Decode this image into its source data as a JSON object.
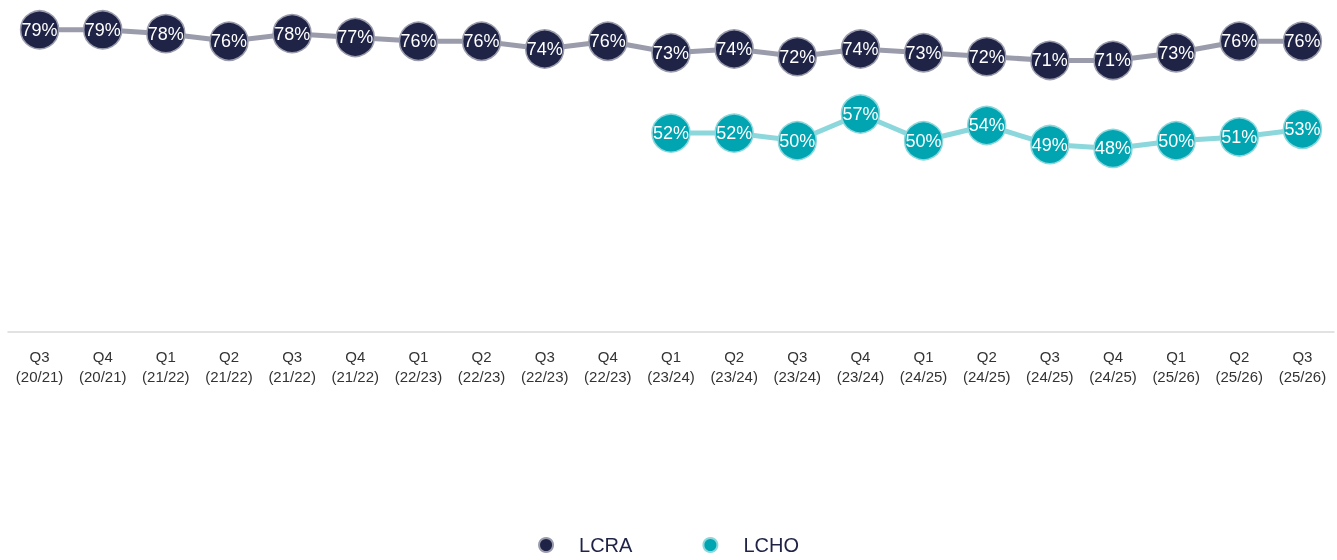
{
  "chart_data": {
    "type": "line",
    "categories": [
      "Q3\n(20/21)",
      "Q4\n(20/21)",
      "Q1\n(21/22)",
      "Q2\n(21/22)",
      "Q3\n(21/22)",
      "Q4\n(21/22)",
      "Q1\n(22/23)",
      "Q2\n(22/23)",
      "Q3\n(22/23)",
      "Q4\n(22/23)",
      "Q1\n(23/24)",
      "Q2\n(23/24)",
      "Q3\n(23/24)",
      "Q4\n(23/24)",
      "Q1\n(24/25)",
      "Q2\n(24/25)",
      "Q3\n(24/25)",
      "Q4\n(24/25)",
      "Q1\n(25/26)",
      "Q2\n(25/26)",
      "Q3\n(25/26)"
    ],
    "series": [
      {
        "name": "LCRA",
        "color": "#1f2447",
        "values": [
          79,
          79,
          78,
          76,
          78,
          77,
          76,
          76,
          74,
          76,
          73,
          74,
          72,
          74,
          73,
          72,
          71,
          71,
          73,
          76,
          76
        ],
        "value_labels": [
          "79%",
          "79%",
          "78%",
          "76%",
          "78%",
          "77%",
          "76%",
          "76%",
          "74%",
          "76%",
          "73%",
          "74%",
          "72%",
          "74%",
          "73%",
          "72%",
          "71%",
          "71%",
          "73%",
          "76%",
          "76%"
        ]
      },
      {
        "name": "LCHO",
        "color": "#00a5b1",
        "values": [
          null,
          null,
          null,
          null,
          null,
          null,
          null,
          null,
          null,
          null,
          52,
          52,
          50,
          57,
          50,
          54,
          49,
          48,
          50,
          51,
          53
        ],
        "value_labels": [
          null,
          null,
          null,
          null,
          null,
          null,
          null,
          null,
          null,
          null,
          "52%",
          "52%",
          "50%",
          "57%",
          "50%",
          "54%",
          "49%",
          "48%",
          "50%",
          "51%",
          "53%"
        ]
      }
    ],
    "grid": false,
    "legend": "bottom",
    "marker": "circle",
    "line_style": "solid"
  }
}
